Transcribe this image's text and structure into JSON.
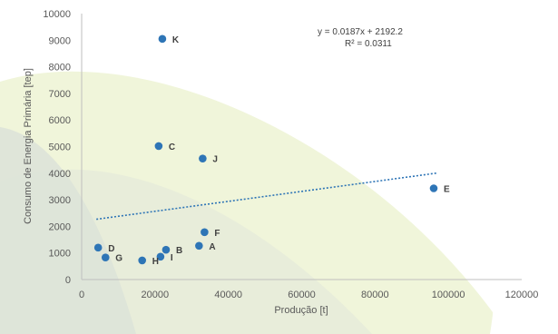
{
  "chart_data": {
    "type": "scatter",
    "xlabel": "Produção [t]",
    "ylabel": "Consumo de Energia Primária [tep]",
    "xlim": [
      0,
      120000
    ],
    "ylim": [
      0,
      10000
    ],
    "xticks": [
      0,
      20000,
      40000,
      60000,
      80000,
      100000,
      120000
    ],
    "yticks": [
      0,
      1000,
      2000,
      3000,
      4000,
      5000,
      6000,
      7000,
      8000,
      9000,
      10000
    ],
    "grid": false,
    "points": [
      {
        "label": "K",
        "x": 22000,
        "y": 9050
      },
      {
        "label": "C",
        "x": 21000,
        "y": 5020
      },
      {
        "label": "J",
        "x": 33000,
        "y": 4550
      },
      {
        "label": "E",
        "x": 96000,
        "y": 3430
      },
      {
        "label": "F",
        "x": 33500,
        "y": 1780
      },
      {
        "label": "A",
        "x": 32000,
        "y": 1270
      },
      {
        "label": "B",
        "x": 23000,
        "y": 1120
      },
      {
        "label": "I",
        "x": 21500,
        "y": 860
      },
      {
        "label": "H",
        "x": 16500,
        "y": 720
      },
      {
        "label": "D",
        "x": 4500,
        "y": 1200
      },
      {
        "label": "G",
        "x": 6500,
        "y": 830
      }
    ],
    "trendline": {
      "slope": 0.0187,
      "intercept": 2192.2,
      "x_range": [
        4000,
        97000
      ],
      "equation": "y = 0.0187x + 2192.2",
      "r2": "R² = 0.0311"
    },
    "colors": {
      "point": "#2e75b6",
      "trend": "#2e75b6",
      "axis": "#bfbfbf",
      "text": "#595959"
    }
  }
}
